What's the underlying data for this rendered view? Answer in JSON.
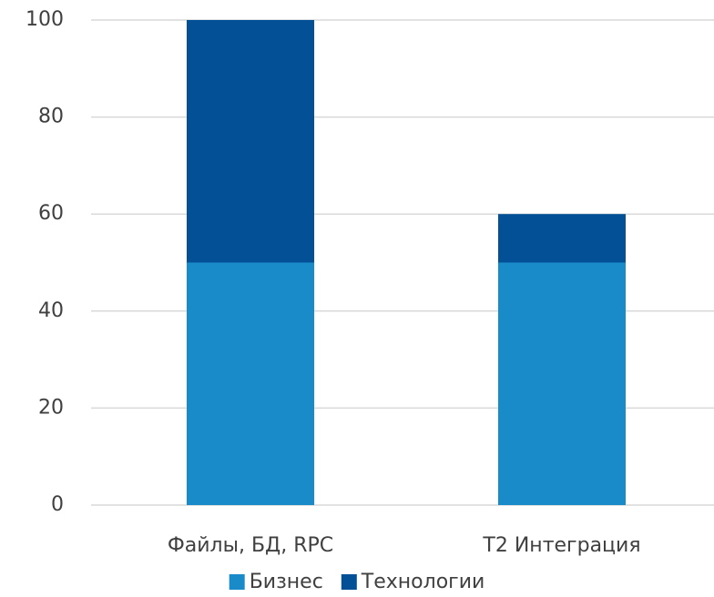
{
  "chart_data": {
    "type": "stacked_bar",
    "categories": [
      "Файлы, БД, RPC",
      "Т2 Интеграция"
    ],
    "series": [
      {
        "name": "Бизнес",
        "color": "#1a8bc9",
        "values": [
          50,
          50
        ]
      },
      {
        "name": "Технологии",
        "color": "#035096",
        "values": [
          50,
          10
        ]
      }
    ],
    "ylim": [
      0,
      100
    ],
    "yticks": [
      0,
      20,
      40,
      60,
      80,
      100
    ],
    "grid": true,
    "legend": "bottom"
  }
}
